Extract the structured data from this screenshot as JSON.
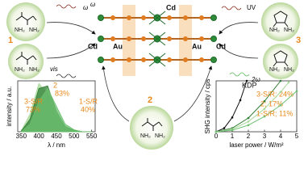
{
  "labels": {
    "ligand_1": "1",
    "ligand_2": "2",
    "ligand_3": "3",
    "cd_left": "Cd",
    "au_left": "Au",
    "cd_top": "Cd",
    "au_right": "Au",
    "cd_right": "Cd",
    "omega_a": "ω",
    "omega_b": "ω",
    "uv": "UV",
    "vis": "vis",
    "two_omega": "2ω"
  },
  "molecules": [
    {
      "amines": [
        "NH₂",
        "NH₂"
      ]
    },
    {
      "amines": [
        "NH₂",
        "NH₂"
      ]
    },
    {
      "amines": [
        "NH₂",
        "NH₂"
      ]
    },
    {
      "amines": [
        "NH₂",
        "NH₂"
      ]
    },
    {
      "amines": [
        "NH₂",
        "NH₂"
      ]
    }
  ],
  "chart_data": [
    {
      "type": "area",
      "xlabel": "λ / nm",
      "ylabel": "intensity / a.u.",
      "x": [
        350,
        375,
        400,
        425,
        450,
        475,
        500,
        525,
        550
      ],
      "xlim": [
        340,
        560
      ],
      "xticks": [
        350,
        400,
        450,
        500,
        550
      ],
      "ylim": [
        0,
        1
      ],
      "series": [
        {
          "name": "2",
          "annotation": "83%",
          "color": "#a8d89a",
          "values": [
            0.02,
            0.35,
            0.95,
            0.75,
            0.3,
            0.08,
            0.02,
            0,
            0
          ]
        },
        {
          "name": "3-S/R",
          "annotation": "73%",
          "color": "#2e7d32",
          "values": [
            0.01,
            0.25,
            0.85,
            0.9,
            0.4,
            0.1,
            0.03,
            0,
            0
          ]
        },
        {
          "name": "1-S/R",
          "annotation": "40%",
          "color": "#6cc070",
          "values": [
            0,
            0.15,
            0.6,
            0.85,
            0.5,
            0.15,
            0.04,
            0,
            0
          ]
        }
      ]
    },
    {
      "type": "line",
      "xlabel": "laser power / W/m²",
      "ylabel": "SHG intensity / cps",
      "xlim": [
        0,
        5
      ],
      "xticks": [
        0,
        1,
        2,
        3,
        4,
        5
      ],
      "ylim": [
        0,
        1
      ],
      "series": [
        {
          "name": "KDP",
          "color": "#111111",
          "x": [
            0,
            0.5,
            1,
            1.5,
            1.9
          ],
          "values": [
            0,
            0.07,
            0.28,
            0.62,
            1.0
          ]
        },
        {
          "name": "3-S/R; 24%",
          "color": "#2e7d32",
          "x": [
            0,
            1,
            2,
            3,
            4
          ],
          "values": [
            0,
            0.07,
            0.27,
            0.6,
            1.0
          ]
        },
        {
          "name": "2; 17%",
          "color": "#a8d89a",
          "x": [
            0,
            1,
            2,
            3,
            4,
            4.5
          ],
          "values": [
            0,
            0.05,
            0.2,
            0.45,
            0.78,
            0.97
          ]
        },
        {
          "name": "1-S/R; 11%",
          "color": "#6cc070",
          "x": [
            0,
            1,
            2,
            3,
            4,
            5
          ],
          "values": [
            0,
            0.03,
            0.13,
            0.3,
            0.52,
            0.8
          ]
        }
      ]
    }
  ]
}
